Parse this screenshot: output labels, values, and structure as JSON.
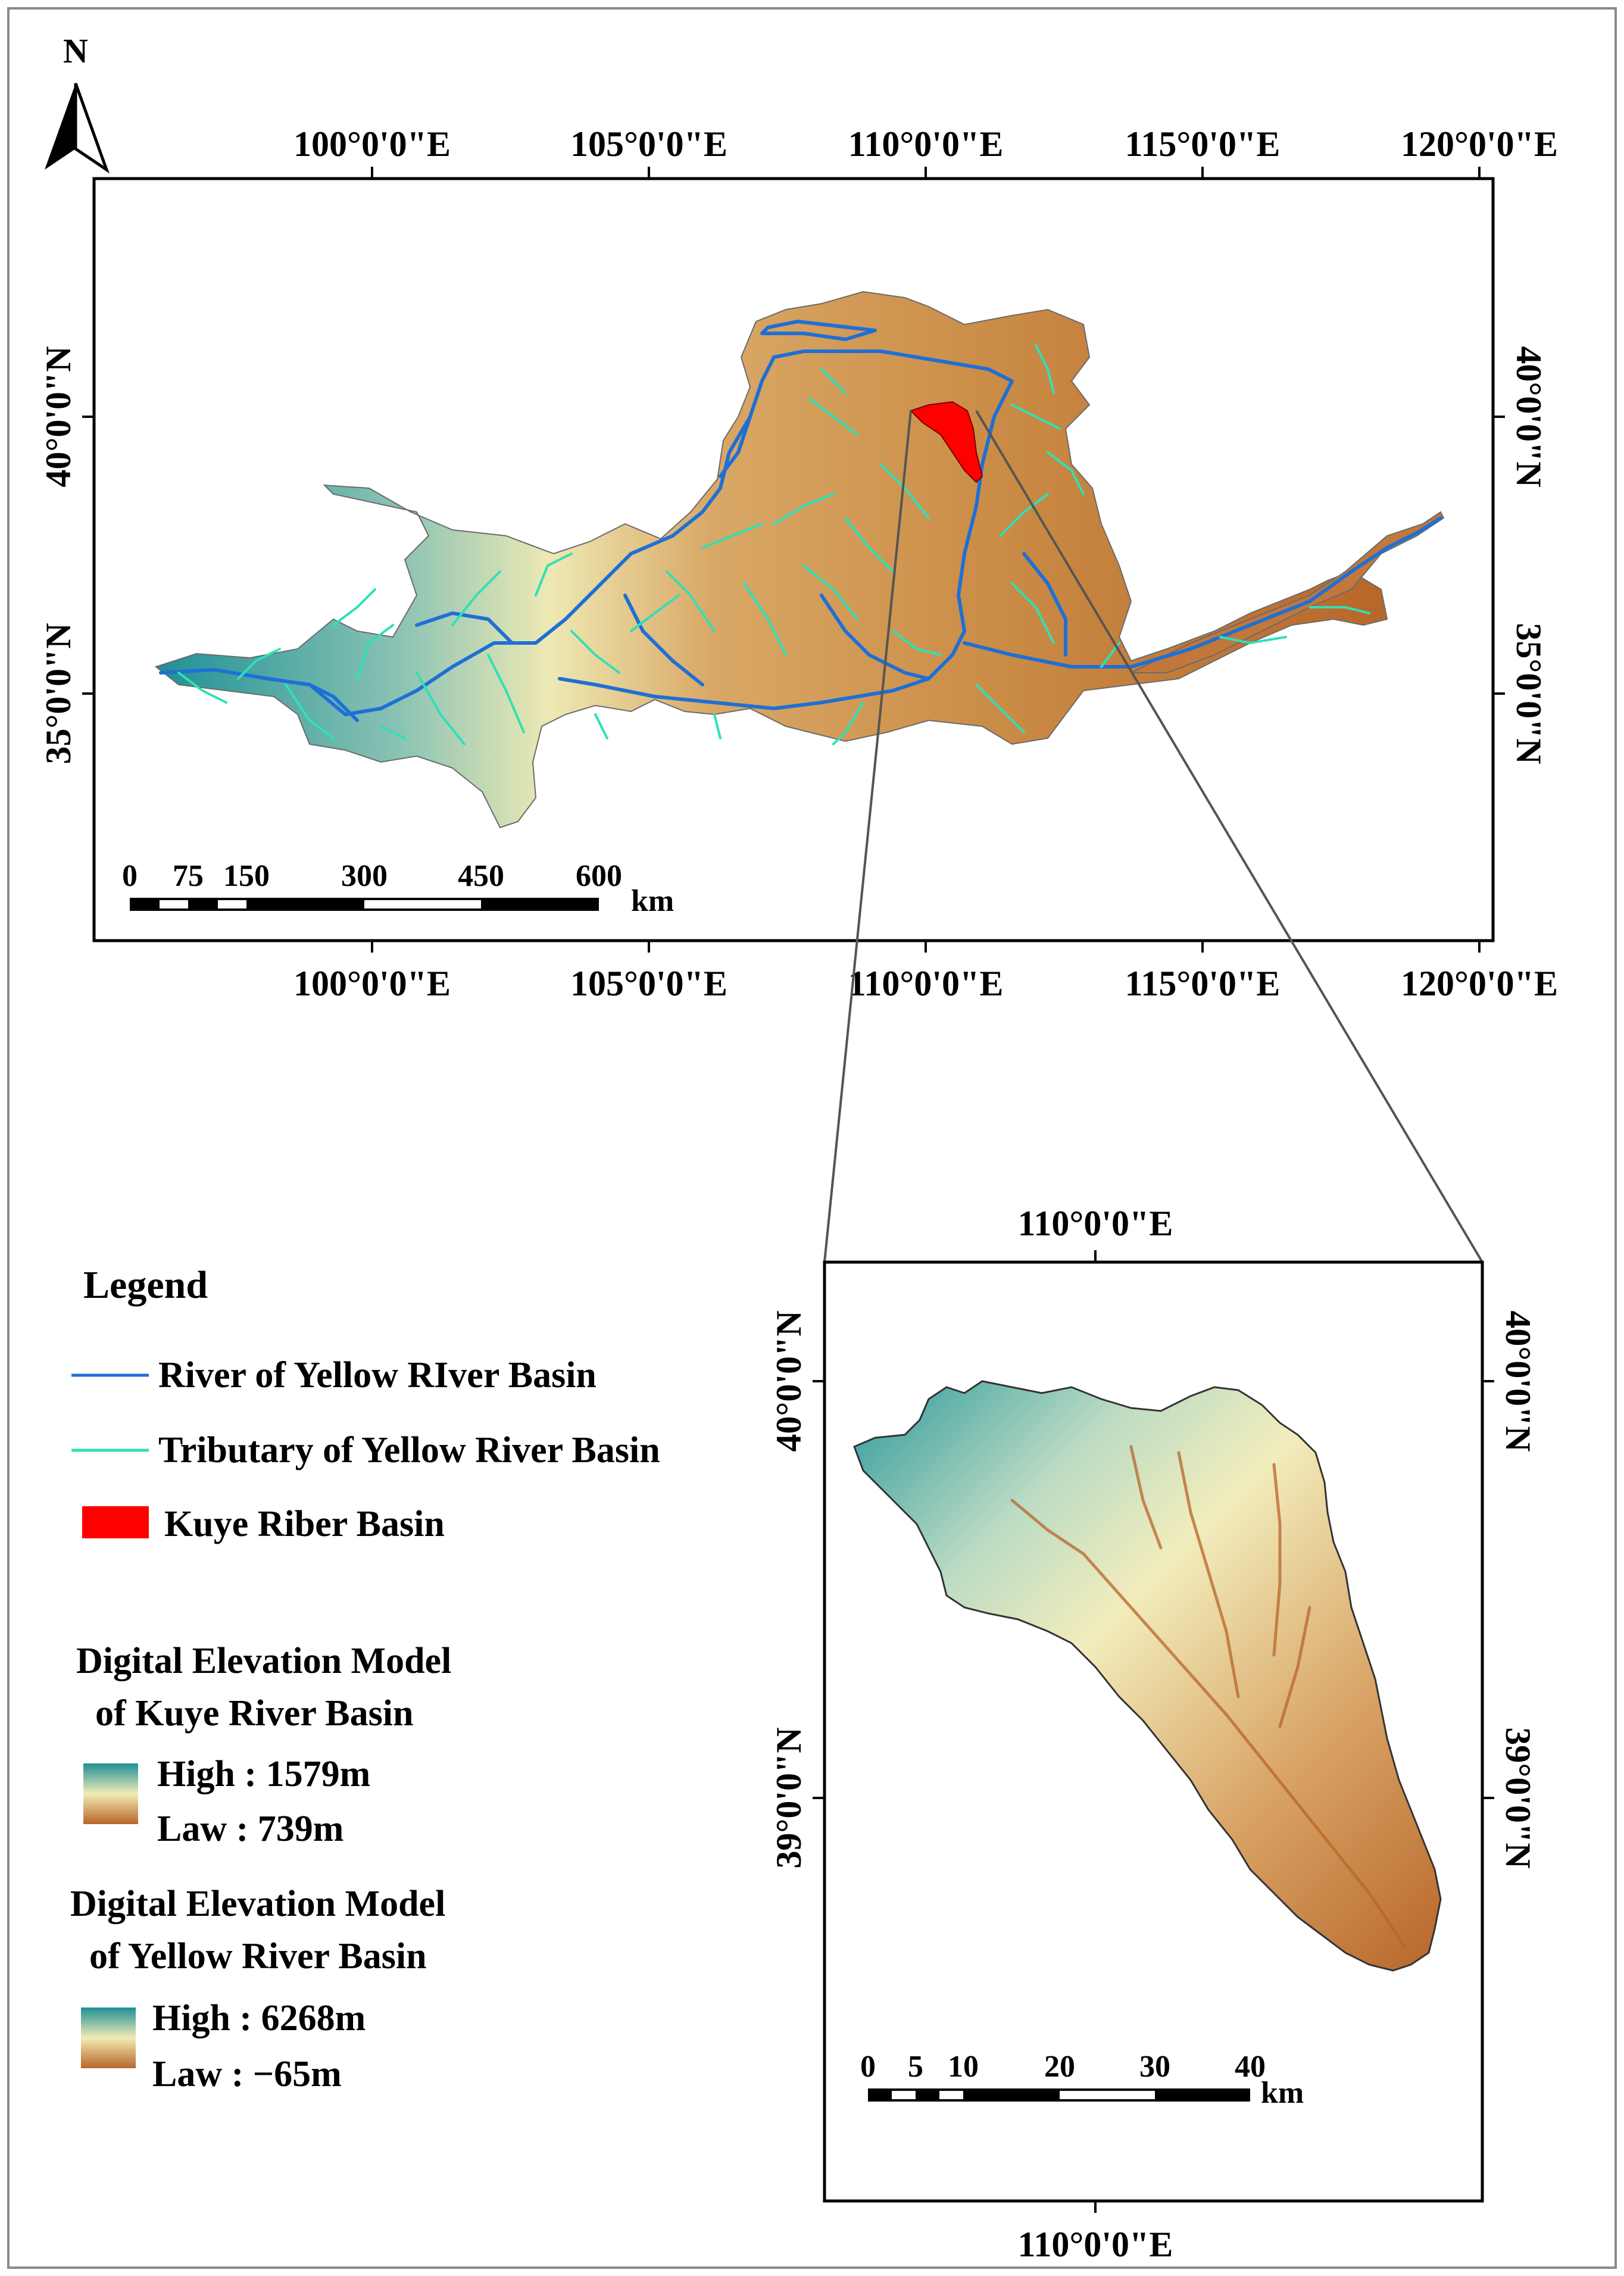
{
  "north_arrow": {
    "label": "N"
  },
  "main_map": {
    "top_lon_labels": [
      "100°0'0\"E",
      "105°0'0\"E",
      "110°0'0\"E",
      "115°0'0\"E",
      "120°0'0\"E"
    ],
    "bottom_lon_labels": [
      "100°0'0\"E",
      "105°0'0\"E",
      "110°0'0\"E",
      "115°0'0\"E",
      "120°0'0\"E"
    ],
    "left_lat_labels": [
      "40°0'0\"N",
      "35°0'0\"N"
    ],
    "right_lat_labels": [
      "40°0'0\"N",
      "35°0'0\"N"
    ],
    "scale_bar": {
      "ticks": [
        "0",
        "75",
        "150",
        "300",
        "450",
        "600"
      ],
      "unit": "km"
    }
  },
  "inset_map": {
    "top_lon_label": "110°0'0\"E",
    "bottom_lon_label": "110°0'0\"E",
    "left_lat_labels": [
      "40°0'0\"N",
      "39°0'0\"N"
    ],
    "right_lat_labels": [
      "40°0'0\"N",
      "39°0'0\"N"
    ],
    "scale_bar": {
      "ticks": [
        "0",
        "5",
        "10",
        "20",
        "30",
        "40"
      ],
      "unit": "km"
    }
  },
  "legend": {
    "title": "Legend",
    "items": [
      {
        "label": "River of Yellow RIver Basin",
        "color": "#1f6fd6"
      },
      {
        "label": "Tributary of Yellow River Basin",
        "color": "#2fe0b8"
      },
      {
        "label": "Kuye Riber Basin",
        "color": "#ff0000"
      }
    ],
    "dem_kuye": {
      "title_line1": "Digital Elevation Model",
      "title_line2": "of Kuye River Basin",
      "high": "High : 1579m",
      "low": "Law : 739m"
    },
    "dem_yellow": {
      "title_line1": "Digital Elevation Model",
      "title_line2": "of Yellow River Basin",
      "high": "High : 6268m",
      "low": "Law : −65m"
    }
  },
  "colors": {
    "dem_high": "#1f8f96",
    "dem_mid": "#f1ecb4",
    "dem_low": "#b8662a",
    "river": "#1f6fd6",
    "tributary": "#2fe0b8",
    "kuye": "#ff0000"
  }
}
